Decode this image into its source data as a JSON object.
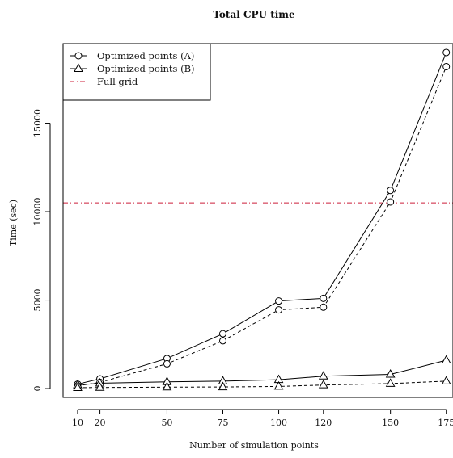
{
  "chart_data": {
    "type": "line",
    "title": "Total CPU time",
    "xlabel": "Number of simulation points",
    "ylabel": "Time (sec)",
    "x": [
      10,
      20,
      50,
      75,
      100,
      120,
      150,
      175
    ],
    "x_ticks": [
      10,
      20,
      50,
      75,
      100,
      120,
      150,
      175
    ],
    "y_ticks": [
      0,
      5000,
      10000,
      15000
    ],
    "xlim": [
      3.5,
      178
    ],
    "ylim": [
      -500,
      19500
    ],
    "legend_position": "top-left",
    "grid": false,
    "series": [
      {
        "name": "Optimized points (A)",
        "marker": "circle",
        "line": "solid",
        "color": "#000000",
        "values": [
          250,
          550,
          1700,
          3100,
          4950,
          5100,
          11200,
          19000
        ]
      },
      {
        "name": "",
        "marker": "circle",
        "line": "dashed",
        "color": "#000000",
        "values": [
          150,
          350,
          1400,
          2700,
          4450,
          4600,
          10550,
          18200
        ]
      },
      {
        "name": "Optimized points (B)",
        "marker": "triangle",
        "line": "solid",
        "color": "#000000",
        "values": [
          200,
          300,
          380,
          420,
          500,
          700,
          800,
          1600
        ]
      },
      {
        "name": "",
        "marker": "triangle",
        "line": "dashed",
        "color": "#000000",
        "values": [
          50,
          60,
          80,
          90,
          120,
          200,
          280,
          420
        ]
      }
    ],
    "reference_lines": [
      {
        "name": "Full grid",
        "y": 10500,
        "line": "dashdot",
        "color": "#cc1f3a"
      }
    ]
  }
}
